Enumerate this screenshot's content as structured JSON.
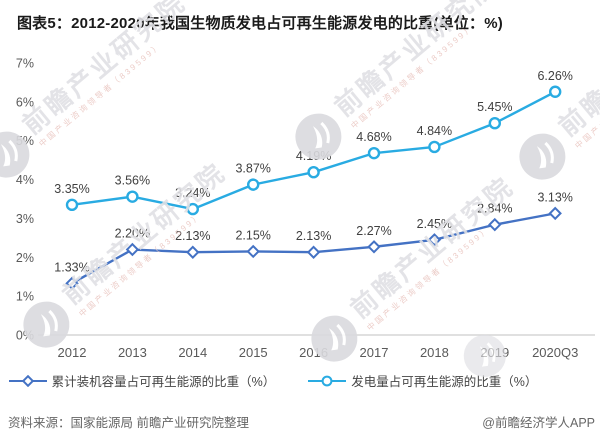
{
  "title": "图表5：2012-2020年我国生物质发电占可再生能源发电的比重(单位：%)",
  "chart_data": {
    "type": "line",
    "categories": [
      "2012",
      "2013",
      "2014",
      "2015",
      "2016",
      "2017",
      "2018",
      "2019",
      "2020Q3"
    ],
    "series": [
      {
        "name": "累计装机容量占可再生能源的比重（%）",
        "marker": "diamond",
        "color": "#4472c4",
        "values": [
          1.33,
          2.2,
          2.13,
          2.15,
          2.13,
          2.27,
          2.45,
          2.84,
          3.13
        ]
      },
      {
        "name": "发电量占可再生能源的比重（%）",
        "marker": "circle",
        "color": "#29abe2",
        "values": [
          3.35,
          3.56,
          3.24,
          3.87,
          4.19,
          4.68,
          4.84,
          5.45,
          6.26
        ]
      }
    ],
    "ylim": [
      0,
      7
    ],
    "yticks": [
      "0%",
      "1%",
      "2%",
      "3%",
      "4%",
      "5%",
      "6%",
      "7%"
    ],
    "grid": false,
    "legend_position": "bottom",
    "xlabel": "",
    "ylabel": "",
    "label_suffix": "%"
  },
  "watermark": {
    "text": "前瞻产业研究院",
    "subtext": "中国产业咨询领导者（839599）"
  },
  "footer": {
    "source": "资料来源：国家能源局 前瞻产业研究院整理",
    "brand": "@前瞻经济学人APP"
  }
}
